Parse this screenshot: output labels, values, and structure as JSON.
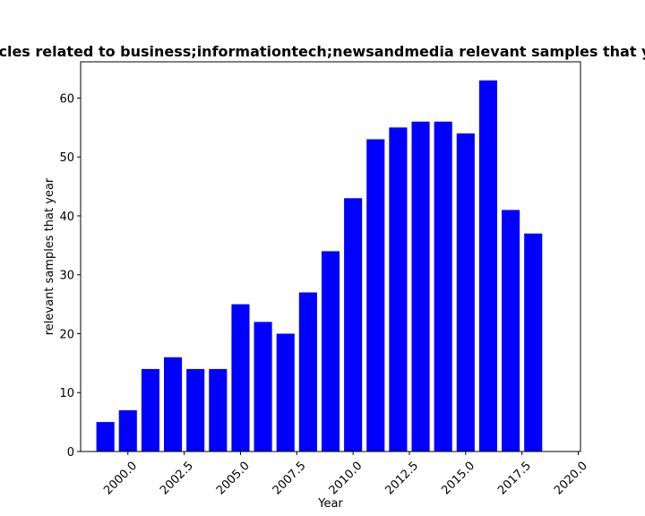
{
  "chart_data": {
    "type": "bar",
    "title": "Number of articles related to business;informationtech;newsandmedia relevant samples that year in each year",
    "xlabel": "Year",
    "ylabel": "relevant samples that year",
    "x": [
      1999,
      2000,
      2001,
      2002,
      2003,
      2004,
      2005,
      2006,
      2007,
      2008,
      2009,
      2010,
      2011,
      2012,
      2013,
      2014,
      2015,
      2016,
      2017,
      2018
    ],
    "values": [
      5,
      7,
      14,
      16,
      14,
      14,
      25,
      22,
      20,
      27,
      34,
      43,
      53,
      55,
      56,
      56,
      54,
      63,
      41,
      37
    ],
    "xlim": [
      1997.9,
      2020.1
    ],
    "ylim": [
      0,
      66.15
    ],
    "xticks": [
      2000.0,
      2002.5,
      2005.0,
      2007.5,
      2010.0,
      2012.5,
      2015.0,
      2017.5,
      2020.0
    ],
    "xtick_labels": [
      "2000.0",
      "2002.5",
      "2005.0",
      "2007.5",
      "2010.0",
      "2012.5",
      "2015.0",
      "2017.5",
      "2020.0"
    ],
    "yticks": [
      0,
      10,
      20,
      30,
      40,
      50,
      60
    ],
    "ytick_labels": [
      "0",
      "10",
      "20",
      "30",
      "40",
      "50",
      "60"
    ],
    "bar_color": "#0000ff",
    "grid": false,
    "legend": "none"
  }
}
